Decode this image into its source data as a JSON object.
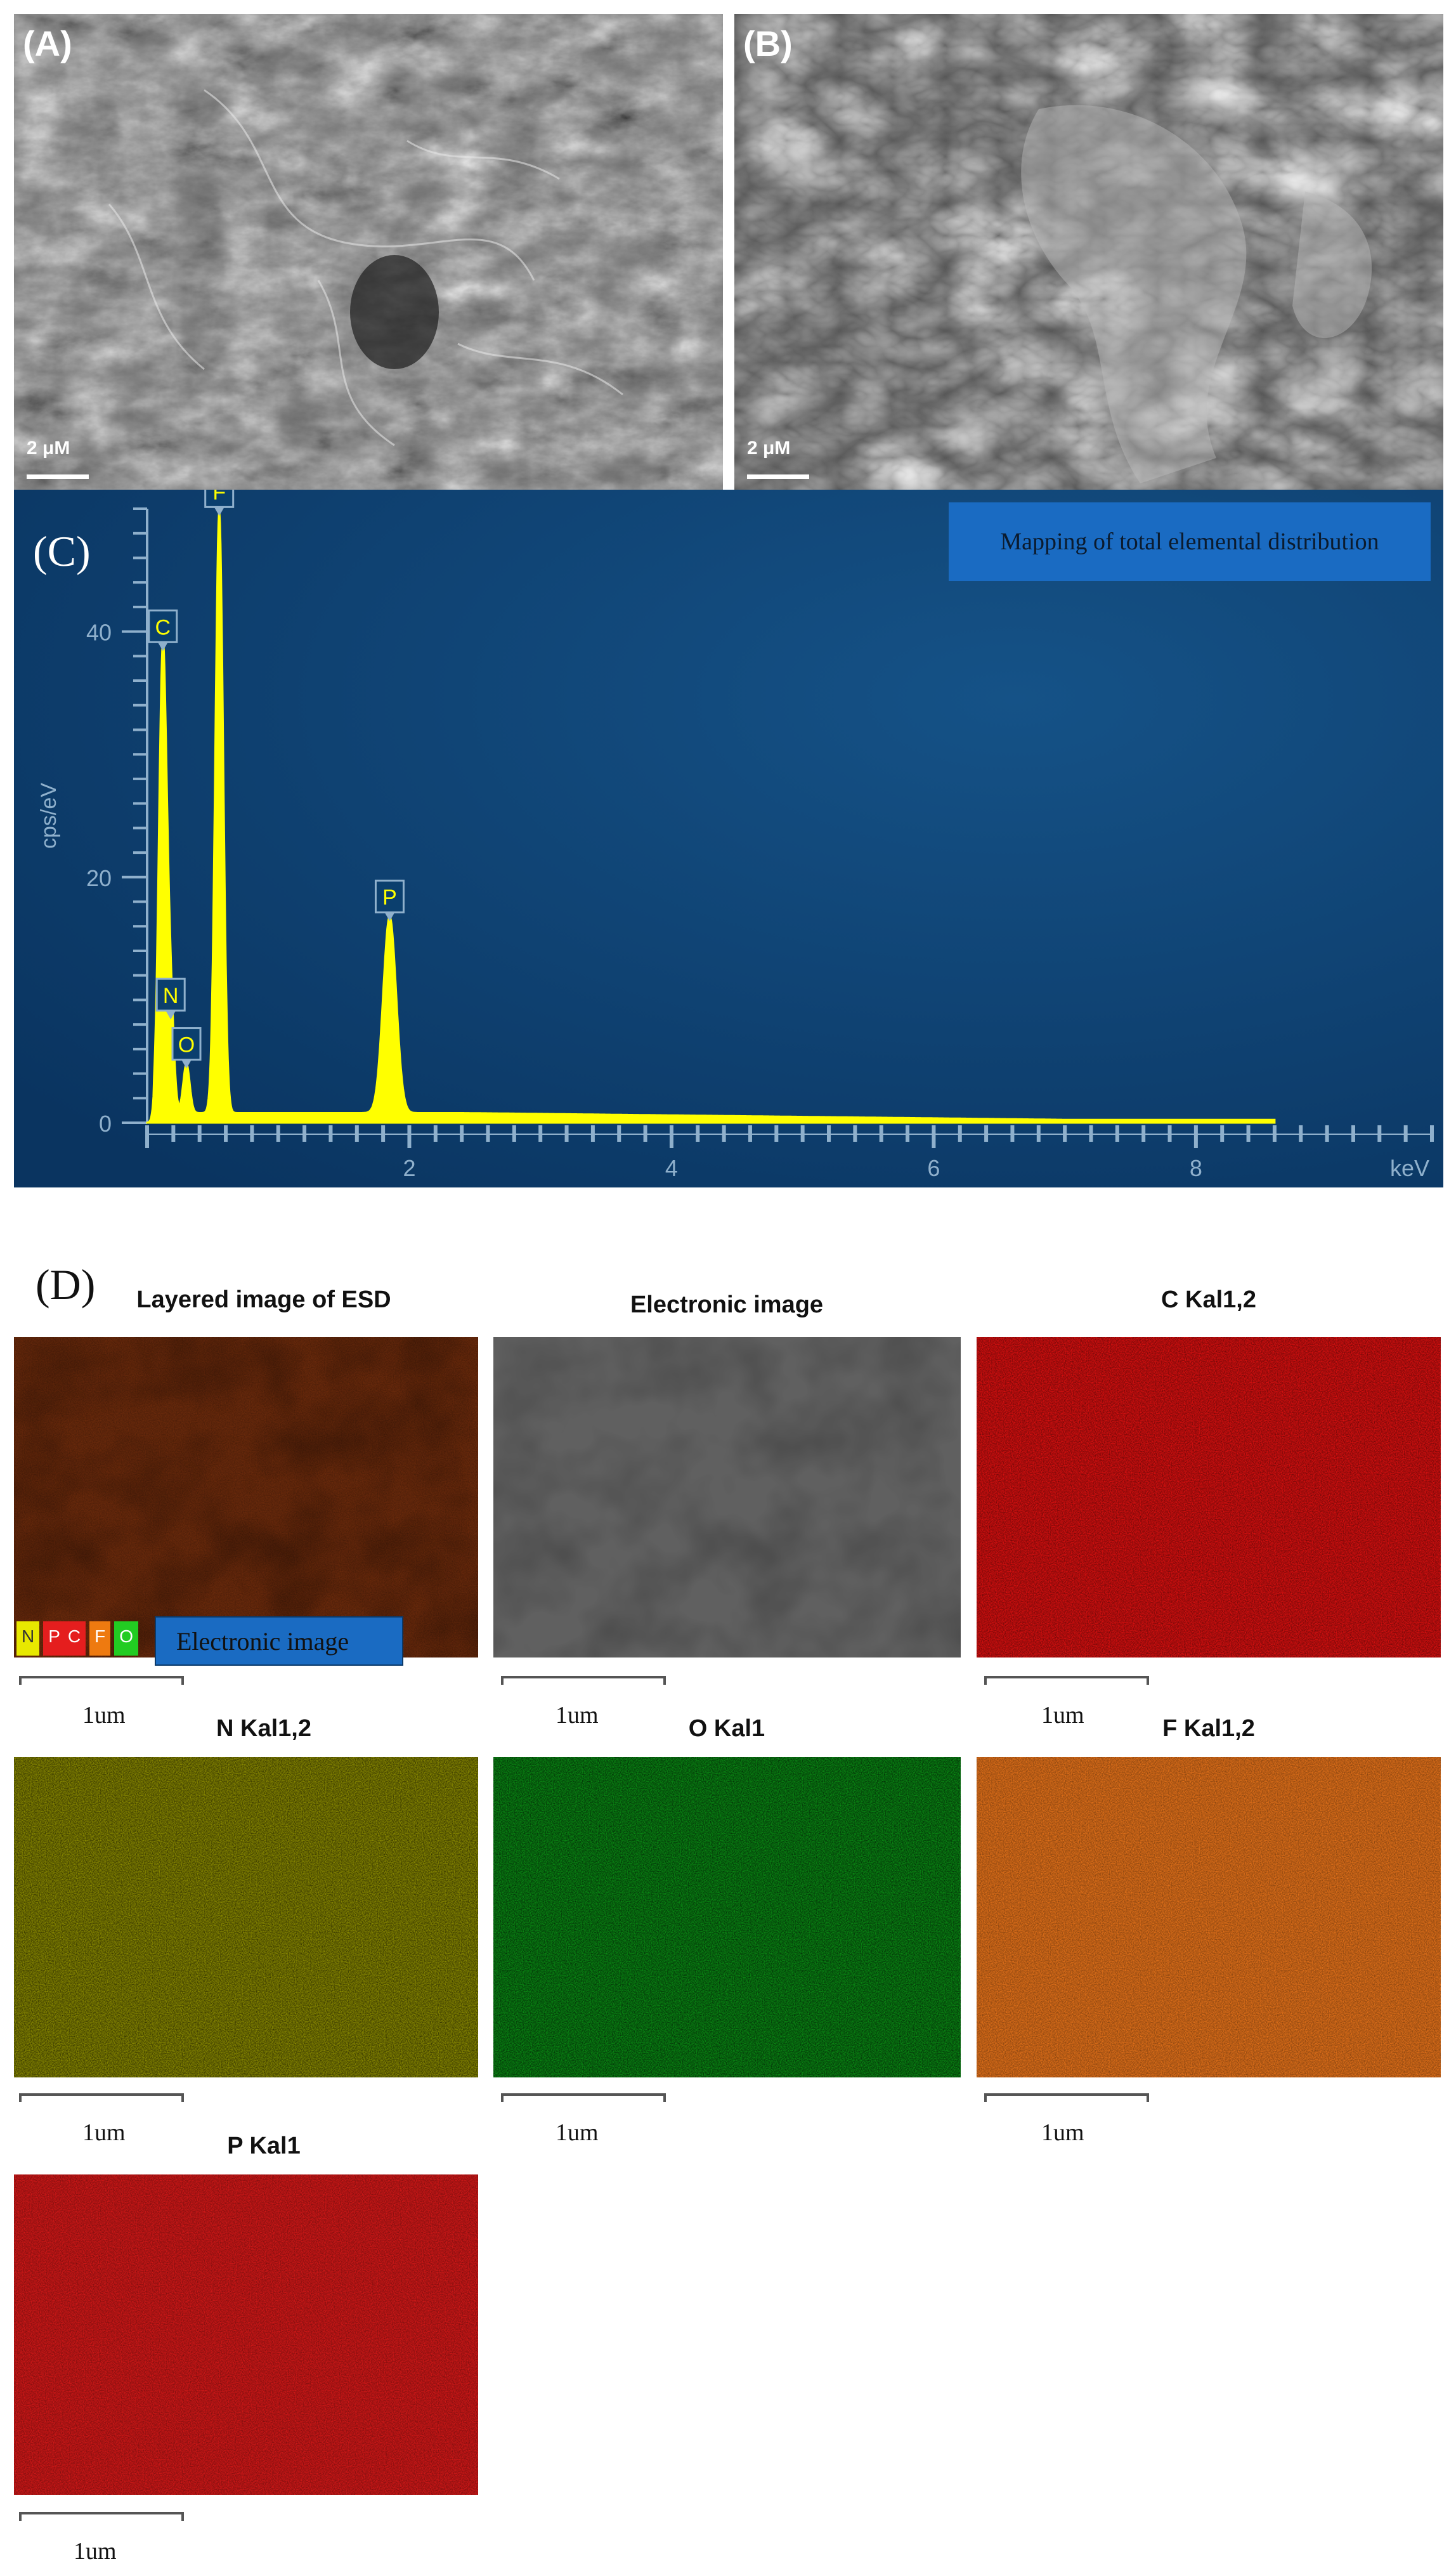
{
  "panels": {
    "a": {
      "label": "(A)",
      "scale": "2 μM"
    },
    "b": {
      "label": "(B)",
      "scale": "2 μM"
    }
  },
  "spectrum": {
    "label": "(C)",
    "legend": "Mapping of total elemental distribution",
    "colors": {
      "background": "#0b3f6e",
      "trace": "#ffff00",
      "axis": "#8fb0cc"
    }
  },
  "chart_data": {
    "type": "line",
    "xlabel": "keV",
    "ylabel": "cps/eV",
    "xlim": [
      0,
      9.8
    ],
    "ylim": [
      0,
      50
    ],
    "x_ticks": [
      "2",
      "4",
      "6",
      "8"
    ],
    "y_ticks": [
      "0",
      "20",
      "40"
    ],
    "peaks": [
      {
        "element": "C",
        "x": 0.12,
        "y": 38
      },
      {
        "element": "N",
        "x": 0.18,
        "y": 8
      },
      {
        "element": "O",
        "x": 0.3,
        "y": 4
      },
      {
        "element": "F",
        "x": 0.55,
        "y": 49
      },
      {
        "element": "P",
        "x": 1.85,
        "y": 16
      }
    ]
  },
  "mapping": {
    "label": "(D)",
    "tiles": [
      {
        "title": "Layered image of ESD",
        "scale": "1um",
        "color": "#5a1e0a"
      },
      {
        "title": "Electronic image",
        "scale": "1um",
        "color": "#5c5c5c"
      },
      {
        "title": "C Kal1,2",
        "scale": "1um",
        "color": "#d81010"
      },
      {
        "title": "N Kal1,2",
        "scale": "1um",
        "color": "#8a8a00"
      },
      {
        "title": "O Kal1",
        "scale": "1um",
        "color": "#0a7a12"
      },
      {
        "title": "F Kal1,2",
        "scale": "1um",
        "color": "#d9650f"
      },
      {
        "title": "P Kal1",
        "scale": "1um",
        "color": "#c71414"
      }
    ],
    "legend_chips": [
      {
        "text": "N",
        "color": "#e8e800"
      },
      {
        "text": "P",
        "color": "#e51e1e"
      },
      {
        "text": "C",
        "color": "#e51e1e"
      },
      {
        "text": "F",
        "color": "#ee7a10"
      },
      {
        "text": "O",
        "color": "#22cc22"
      }
    ],
    "overlay_label": "Electronic image"
  }
}
